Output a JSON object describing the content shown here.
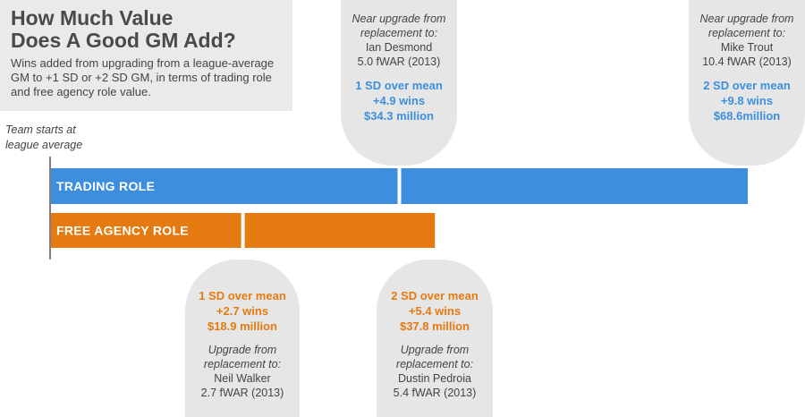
{
  "title": "How Much Value\nDoes A Good GM Add?",
  "subtitle": "Wins added from upgrading from a league-average GM to +1 SD or +2 SD GM, in terms of trading role and free agency role value.",
  "axis_start_label": "Team starts at\nleague average",
  "colors": {
    "trading": "#3d8fde",
    "free_agency": "#e57a10",
    "callout_bg": "#e6e6e6",
    "panel_bg": "#eaeaea"
  },
  "chart_data": {
    "type": "bar",
    "orientation": "horizontal",
    "unit": "wins",
    "xlim": [
      0,
      9.8
    ],
    "series": [
      {
        "name": "TRADING ROLE",
        "color": "#3d8fde",
        "segments": [
          {
            "level": "1 SD over mean",
            "wins": 4.9,
            "dollars": "$34.3 million"
          },
          {
            "level": "2 SD over mean",
            "wins": 9.8,
            "dollars": "$68.6million"
          }
        ]
      },
      {
        "name": "FREE AGENCY ROLE",
        "color": "#e57a10",
        "segments": [
          {
            "level": "1 SD over mean",
            "wins": 2.7,
            "dollars": "$18.9 million"
          },
          {
            "level": "2 SD over mean",
            "wins": 5.4,
            "dollars": "$37.8 million"
          }
        ]
      }
    ]
  },
  "callouts": {
    "trading_1sd": {
      "note1": "Near upgrade from",
      "note2": "replacement to:",
      "player": "Ian Desmond",
      "fwar": "5.0 fWAR (2013)",
      "level": "1 SD over mean",
      "wins": "+4.9 wins",
      "dollars": "$34.3 million"
    },
    "trading_2sd": {
      "note1": "Near upgrade from",
      "note2": "replacement to:",
      "player": "Mike Trout",
      "fwar": "10.4 fWAR (2013)",
      "level": "2 SD over mean",
      "wins": "+9.8 wins",
      "dollars": "$68.6million"
    },
    "fa_1sd": {
      "level": "1 SD over mean",
      "wins": "+2.7 wins",
      "dollars": "$18.9 million",
      "note1": "Upgrade from",
      "note2": "replacement to:",
      "player": "Neil Walker",
      "fwar": "2.7 fWAR (2013)"
    },
    "fa_2sd": {
      "level": "2 SD over mean",
      "wins": "+5.4 wins",
      "dollars": "$37.8 million",
      "note1": "Upgrade from",
      "note2": "replacement to:",
      "player": "Dustin Pedroia",
      "fwar": "5.4 fWAR (2013)"
    }
  }
}
